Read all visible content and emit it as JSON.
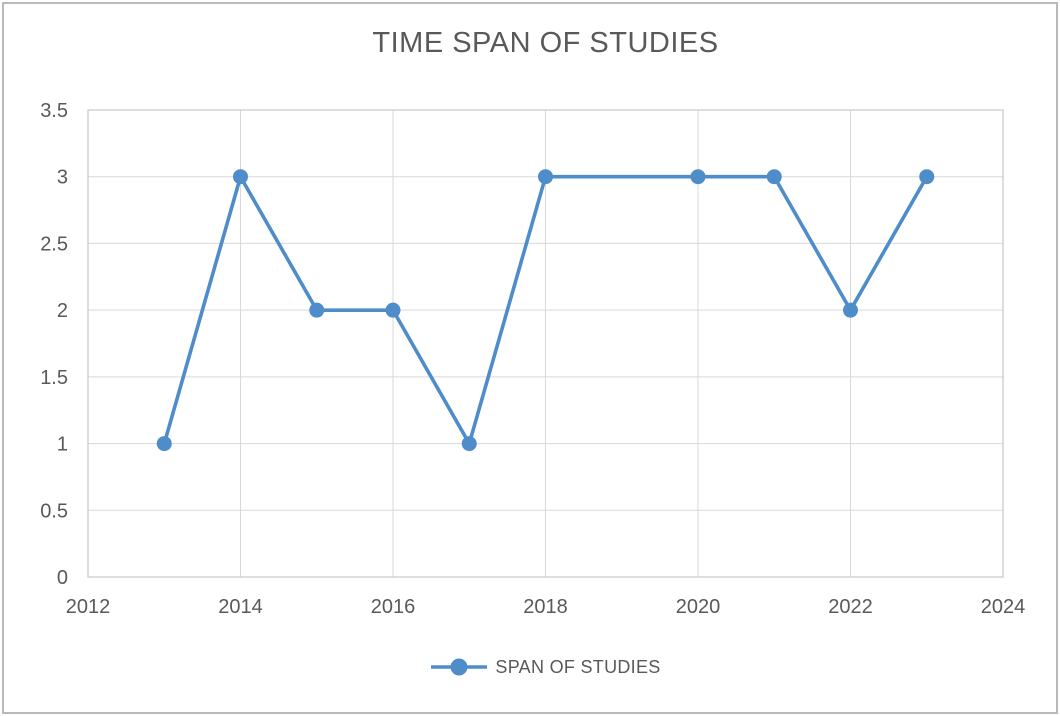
{
  "figure": {
    "background": "#ffffff",
    "outer_border_color": "#b9b9b9"
  },
  "style": {
    "text_color": "#595959",
    "grid_color": "#d9d9d9",
    "plot_border_color": "#c7c7c7",
    "tick_font_size": 20,
    "title_font_size": 29
  },
  "chart_data": {
    "type": "line",
    "title": "TIME SPAN OF STUDIES",
    "xlabel": "",
    "ylabel": "",
    "x_axis": {
      "min": 2012,
      "max": 2024,
      "tick_step": 2,
      "ticks": [
        2012,
        2014,
        2016,
        2018,
        2020,
        2022,
        2024
      ],
      "gridlines": true
    },
    "y_axis": {
      "min": 0,
      "max": 3.5,
      "tick_step": 0.5,
      "ticks": [
        0,
        0.5,
        1,
        1.5,
        2,
        2.5,
        3,
        3.5
      ],
      "gridlines": true
    },
    "series": [
      {
        "name": "SPAN OF STUDIES",
        "color": "#4e8cca",
        "marker": "circle",
        "marker_radius": 7.5,
        "line_width": 3.6,
        "points": [
          [
            2013,
            1
          ],
          [
            2014,
            3
          ],
          [
            2015,
            2
          ],
          [
            2016,
            2
          ],
          [
            2017,
            1
          ],
          [
            2018,
            3
          ],
          [
            2020,
            3
          ],
          [
            2021,
            3
          ],
          [
            2022,
            2
          ],
          [
            2023,
            3
          ]
        ]
      }
    ],
    "legend": {
      "position": "bottom",
      "entries": [
        "SPAN OF STUDIES"
      ]
    },
    "notes": "no marker at 2019; the line connects 2018 directly to 2020"
  }
}
